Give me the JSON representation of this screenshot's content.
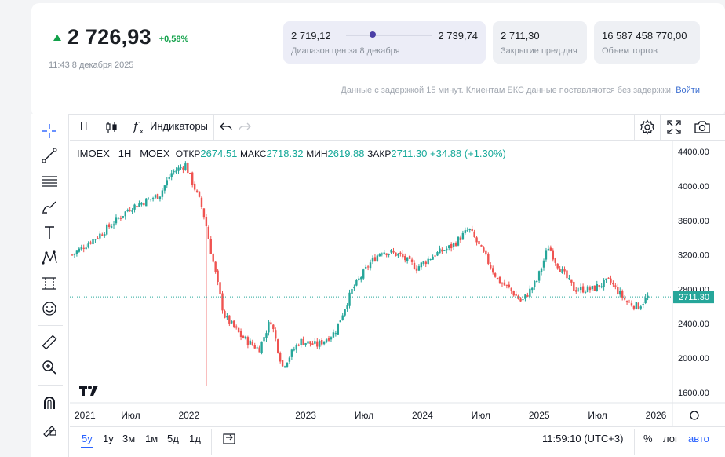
{
  "quote": {
    "price": "2 726,93",
    "change": "+0,58%",
    "timestamp": "11:43 8 декабря 2025"
  },
  "stats": {
    "range_low": "2 719,12",
    "range_high": "2 739,74",
    "range_label": "Диапазон цен за 8 декабря",
    "prev_close": "2 711,30",
    "prev_close_label": "Закрытие пред.дня",
    "volume": "16 587 458 770,00",
    "volume_label": "Объем торгов"
  },
  "delay_note": {
    "text": "Данные с задержкой 15 минут. Клиентам БКС данные поставляются без задержки.",
    "link": "Войти"
  },
  "toolbar": {
    "interval": "H",
    "indicators": "Индикаторы"
  },
  "legend": {
    "symbol": "IMOEX",
    "interval": "1H",
    "exchange": "MOEX",
    "open_label": "ОТКР",
    "open": "2674.51",
    "high_label": "МАКС",
    "high": "2718.32",
    "low_label": "МИН",
    "low": "2619.88",
    "close_label": "ЗАКР",
    "close": "2711.30",
    "change": "+34.88 (+1.30%)"
  },
  "bottom": {
    "ranges": [
      "5y",
      "1y",
      "3м",
      "1м",
      "5д",
      "1д"
    ],
    "active_range": "5y",
    "time": "11:59:10 (UTC+3)",
    "percent": "%",
    "log": "лог",
    "auto": "авто"
  },
  "chart_data": {
    "type": "candlestick",
    "symbol": "IMOEX",
    "interval": "1H",
    "x_ticks": [
      "2021",
      "Июл",
      "2022",
      "2023",
      "Июл",
      "2024",
      "Июл",
      "2025",
      "Июл",
      "2026"
    ],
    "y_ticks": [
      4400,
      4000,
      3600,
      3200,
      2800,
      2400,
      2000,
      1600
    ],
    "ylim": [
      1480,
      4520
    ],
    "last_price": 2711.3,
    "last_price_label": "2711.30",
    "series": [
      {
        "name": "IMOEX",
        "x": [
          2021.0,
          2021.25,
          2021.5,
          2021.75,
          2021.85,
          2021.97,
          2022.1,
          2022.14,
          2022.18,
          2022.3,
          2022.45,
          2022.6,
          2022.7,
          2022.8,
          2022.95,
          2023.1,
          2023.25,
          2023.4,
          2023.55,
          2023.65,
          2023.8,
          2023.95,
          2024.1,
          2024.25,
          2024.4,
          2024.55,
          2024.65,
          2024.75,
          2024.85,
          2024.98,
          2025.08,
          2025.15,
          2025.3,
          2025.45,
          2025.6,
          2025.75,
          2025.85,
          2025.93
        ],
        "values": [
          3200,
          3450,
          3750,
          3900,
          4150,
          4250,
          3800,
          3600,
          3300,
          2500,
          2250,
          2100,
          2450,
          1900,
          2200,
          2150,
          2300,
          2800,
          3100,
          3250,
          3200,
          3050,
          3200,
          3300,
          3500,
          3150,
          2900,
          2800,
          2650,
          2900,
          3300,
          3100,
          2800,
          2800,
          2900,
          2650,
          2600,
          2711.3
        ]
      }
    ],
    "colors": {
      "up": "#26a69a",
      "down": "#ef5350"
    }
  },
  "colors": {
    "up": "#12a14a",
    "accent": "#2962ff",
    "teal": "#18a99a",
    "purple": "#4b3fa6"
  }
}
